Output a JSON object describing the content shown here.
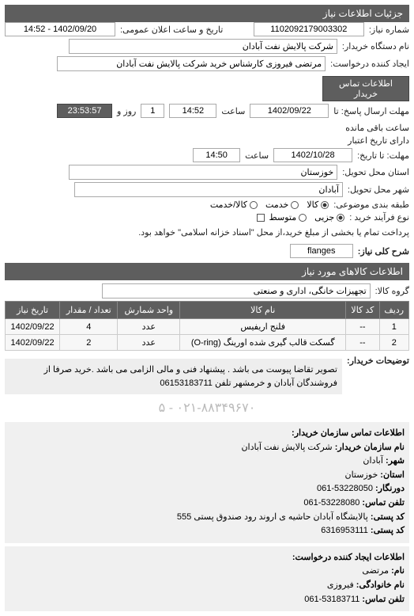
{
  "header": "جزئیات اطلاعات نیاز",
  "row1": {
    "label_num": "شماره نیاز:",
    "num": "1102092179003302",
    "label_date": "تاریخ و ساعت اعلان عمومی:",
    "date": "1402/09/20 - 14:52"
  },
  "row2": {
    "label": "نام دستگاه خریدار:",
    "value": "شرکت پالایش نفت آبادان"
  },
  "row3": {
    "label": "ایجاد کننده درخواست:",
    "value": "مرتضی فیروزی کارشناس خرید  شرکت پالایش نفت آبادان",
    "btn": "اطلاعات تماس خریدار"
  },
  "deadline": {
    "label1": "مهلت ارسال پاسخ: تا",
    "date": "1402/09/22",
    "time_lbl": "ساعت",
    "time": "14:52",
    "rem_lbl": "روز و",
    "days": "1",
    "rem_time": "23:53:57",
    "rem_suffix": "ساعت باقی مانده"
  },
  "expire": {
    "label": "مهلت: تا تاریخ:",
    "label2": "دارای تاریخ اعتبار",
    "date": "1402/10/28",
    "time_lbl": "ساعت",
    "time": "14:50"
  },
  "location": {
    "label1": "استان محل تحویل:",
    "val1": "خوزستان",
    "label2": "شهر محل تحویل:",
    "val2": "آبادان"
  },
  "subject": {
    "label": "طبقه بندی موضوعی:",
    "opts": [
      "کالا",
      "خدمت",
      "کالا/خدمت"
    ],
    "checked": 0
  },
  "purchase": {
    "label": "نوع فرآیند خرید :",
    "opts": [
      "جزیی",
      "متوسط"
    ],
    "checked": 0,
    "note": "پرداخت تمام یا بخشی از مبلغ خرید،از محل \"اسناد خزانه اسلامی\" خواهد بود."
  },
  "keyword": {
    "label": "شرح کلی نیاز:",
    "value": "flanges"
  },
  "items_title": "اطلاعات کالاهای مورد نیاز",
  "group": {
    "label": "گروه کالا:",
    "value": "تجهیزات خانگی، اداری و صنعتی"
  },
  "table": {
    "headers": [
      "ردیف",
      "کد کالا",
      "نام کالا",
      "واحد شمارش",
      "تعداد / مقدار",
      "تاریخ نیاز"
    ],
    "rows": [
      [
        "1",
        "--",
        "فلنج اریفیس",
        "عدد",
        "4",
        "1402/09/22"
      ],
      [
        "2",
        "--",
        "گسکت قالب گیری شده اورینگ (O-ring)",
        "عدد",
        "2",
        "1402/09/22"
      ]
    ]
  },
  "buyer_note": {
    "label": "توضیحات خریدار:",
    "text": "تصویر تقاضا پیوست می باشد . پیشنهاد فنی و مالی الزامی می باشد .خرید صرفا از فروشندگان آبادان و خرمشهر تلفن 06153183711"
  },
  "blurred_text": "۰۲۱-۸۸۳۴۹۶۷۰ - ۵",
  "contact1": {
    "title": "اطلاعات تماس سازمان خریدار:",
    "lines": [
      [
        "نام سازمان خریدار:",
        "شرکت پالایش نفت آبادان"
      ],
      [
        "شهر:",
        "آبادان"
      ],
      [
        "استان:",
        "خوزستان"
      ],
      [
        "دورنگار:",
        "53228050-061"
      ],
      [
        "تلفن تماس:",
        "53228080-061"
      ],
      [
        "کد پستی:",
        "پالایشگاه آبادان حاشیه ی اروند رود صندوق پستی 555"
      ],
      [
        "کد پستی:",
        "6316953111"
      ]
    ]
  },
  "contact2": {
    "title": "اطلاعات ایجاد کننده درخواست:",
    "lines": [
      [
        "نام:",
        "مرتضی"
      ],
      [
        "نام خانوادگی:",
        "فیروزی"
      ],
      [
        "تلفن تماس:",
        "53183711-061"
      ]
    ]
  }
}
